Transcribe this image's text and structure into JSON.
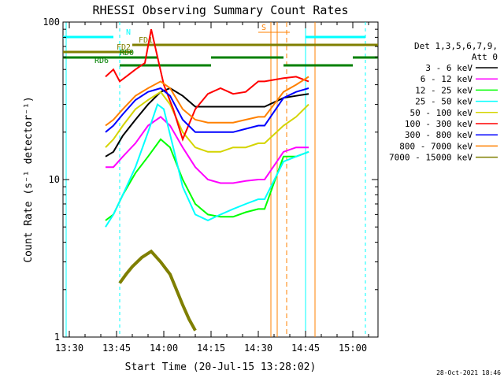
{
  "chart_data": {
    "type": "line",
    "title": "RHESSI Observing Summary Count Rates",
    "xlabel": "Start Time (20-Jul-15 13:28:02)",
    "ylabel": "Count Rate (s⁻¹ detector⁻¹)",
    "yscale": "log",
    "ylim": [
      1,
      100
    ],
    "xlim_minutes_after_13_28": [
      0,
      100
    ],
    "x_tick_labels": [
      "13:30",
      "13:45",
      "14:00",
      "14:15",
      "14:30",
      "14:45",
      "15:00"
    ],
    "y_tick_labels": [
      "1",
      "10",
      "100"
    ],
    "legend_header": [
      "Det 1,3,5,6,7,9,",
      "Att 0"
    ],
    "timestamp": "28-Oct-2021 18:46",
    "flag_labels": [
      "N",
      "S",
      "FD1",
      "FD2",
      "RD0",
      "RD6"
    ],
    "series": [
      {
        "name": "3 - 6 keV",
        "color": "#000000",
        "points": [
          [
            13.5,
            14
          ],
          [
            16,
            15
          ],
          [
            19,
            19
          ],
          [
            23,
            24
          ],
          [
            27,
            30
          ],
          [
            31,
            36
          ],
          [
            34,
            38
          ],
          [
            38,
            34
          ],
          [
            42,
            29
          ],
          [
            46,
            29
          ],
          [
            50,
            29
          ],
          [
            54,
            29
          ],
          [
            58,
            29
          ],
          [
            62,
            29
          ],
          [
            64,
            29
          ],
          [
            70,
            33
          ],
          [
            74,
            34
          ],
          [
            78,
            35
          ]
        ]
      },
      {
        "name": "6 - 12 keV",
        "color": "#ff00ff",
        "points": [
          [
            13.5,
            12
          ],
          [
            16,
            12
          ],
          [
            19,
            14
          ],
          [
            23,
            17
          ],
          [
            27,
            22
          ],
          [
            31,
            25
          ],
          [
            34,
            22
          ],
          [
            38,
            16
          ],
          [
            42,
            12
          ],
          [
            46,
            10
          ],
          [
            50,
            9.5
          ],
          [
            54,
            9.5
          ],
          [
            58,
            9.8
          ],
          [
            62,
            10
          ],
          [
            64,
            10
          ],
          [
            70,
            15
          ],
          [
            74,
            16
          ],
          [
            78,
            16
          ]
        ]
      },
      {
        "name": "12 - 25 keV",
        "color": "#00ff00",
        "points": [
          [
            13.5,
            5.5
          ],
          [
            16,
            6
          ],
          [
            19,
            8
          ],
          [
            23,
            11
          ],
          [
            27,
            14
          ],
          [
            31,
            18
          ],
          [
            34,
            16
          ],
          [
            38,
            10
          ],
          [
            42,
            7
          ],
          [
            46,
            6
          ],
          [
            50,
            5.8
          ],
          [
            54,
            5.8
          ],
          [
            58,
            6.2
          ],
          [
            62,
            6.5
          ],
          [
            64,
            6.5
          ],
          [
            70,
            14
          ],
          [
            74,
            14
          ],
          [
            78,
            15
          ]
        ]
      },
      {
        "name": "25 - 50 keV",
        "color": "#00ffff",
        "points": [
          [
            13.5,
            5
          ],
          [
            16,
            6
          ],
          [
            19,
            8
          ],
          [
            23,
            12
          ],
          [
            27,
            20
          ],
          [
            30,
            30
          ],
          [
            32,
            28
          ],
          [
            35,
            16
          ],
          [
            38,
            9
          ],
          [
            42,
            6
          ],
          [
            46,
            5.5
          ],
          [
            50,
            6
          ],
          [
            54,
            6.5
          ],
          [
            58,
            7
          ],
          [
            62,
            7.5
          ],
          [
            64,
            7.5
          ],
          [
            70,
            13
          ],
          [
            74,
            14
          ],
          [
            78,
            15
          ]
        ]
      },
      {
        "name": "50 - 100 keV",
        "color": "#d4d400",
        "points": [
          [
            13.5,
            16
          ],
          [
            16,
            18
          ],
          [
            19,
            22
          ],
          [
            23,
            28
          ],
          [
            27,
            32
          ],
          [
            31,
            36
          ],
          [
            34,
            30
          ],
          [
            38,
            20
          ],
          [
            42,
            16
          ],
          [
            46,
            15
          ],
          [
            50,
            15
          ],
          [
            54,
            16
          ],
          [
            58,
            16
          ],
          [
            62,
            17
          ],
          [
            64,
            17
          ],
          [
            70,
            22
          ],
          [
            74,
            25
          ],
          [
            78,
            30
          ]
        ]
      },
      {
        "name": "100 - 300 keV",
        "color": "#ff0000",
        "points": [
          [
            13.5,
            45
          ],
          [
            16,
            50
          ],
          [
            18,
            42
          ],
          [
            20,
            45
          ],
          [
            23,
            50
          ],
          [
            26,
            55
          ],
          [
            28,
            90
          ],
          [
            30,
            60
          ],
          [
            32,
            40
          ],
          [
            35,
            28
          ],
          [
            38,
            18
          ],
          [
            42,
            28
          ],
          [
            46,
            35
          ],
          [
            50,
            38
          ],
          [
            54,
            35
          ],
          [
            58,
            36
          ],
          [
            62,
            42
          ],
          [
            64,
            42
          ],
          [
            70,
            44
          ],
          [
            74,
            45
          ],
          [
            78,
            42
          ]
        ]
      },
      {
        "name": "300 - 800 keV",
        "color": "#0000ff",
        "points": [
          [
            13.5,
            20
          ],
          [
            16,
            22
          ],
          [
            19,
            26
          ],
          [
            23,
            32
          ],
          [
            27,
            36
          ],
          [
            31,
            38
          ],
          [
            34,
            34
          ],
          [
            38,
            24
          ],
          [
            42,
            20
          ],
          [
            46,
            20
          ],
          [
            50,
            20
          ],
          [
            54,
            20
          ],
          [
            58,
            21
          ],
          [
            62,
            22
          ],
          [
            64,
            22
          ],
          [
            70,
            33
          ],
          [
            74,
            36
          ],
          [
            78,
            38
          ]
        ]
      },
      {
        "name": "800 - 7000 keV",
        "color": "#ff8000",
        "points": [
          [
            13.5,
            22
          ],
          [
            16,
            24
          ],
          [
            19,
            28
          ],
          [
            23,
            34
          ],
          [
            27,
            38
          ],
          [
            31,
            42
          ],
          [
            34,
            38
          ],
          [
            38,
            28
          ],
          [
            42,
            24
          ],
          [
            46,
            23
          ],
          [
            50,
            23
          ],
          [
            54,
            23
          ],
          [
            58,
            24
          ],
          [
            62,
            25
          ],
          [
            64,
            25
          ],
          [
            70,
            36
          ],
          [
            74,
            40
          ],
          [
            78,
            45
          ]
        ]
      },
      {
        "name": "7000 - 15000 keV",
        "color": "#7f7f00",
        "points": [
          [
            18,
            2.2
          ],
          [
            20,
            2.5
          ],
          [
            22,
            2.8
          ],
          [
            25,
            3.2
          ],
          [
            28,
            3.5
          ],
          [
            31,
            3.0
          ],
          [
            34,
            2.5
          ],
          [
            36,
            2.0
          ],
          [
            38,
            1.6
          ],
          [
            40,
            1.3
          ],
          [
            42,
            1.1
          ]
        ]
      }
    ]
  }
}
